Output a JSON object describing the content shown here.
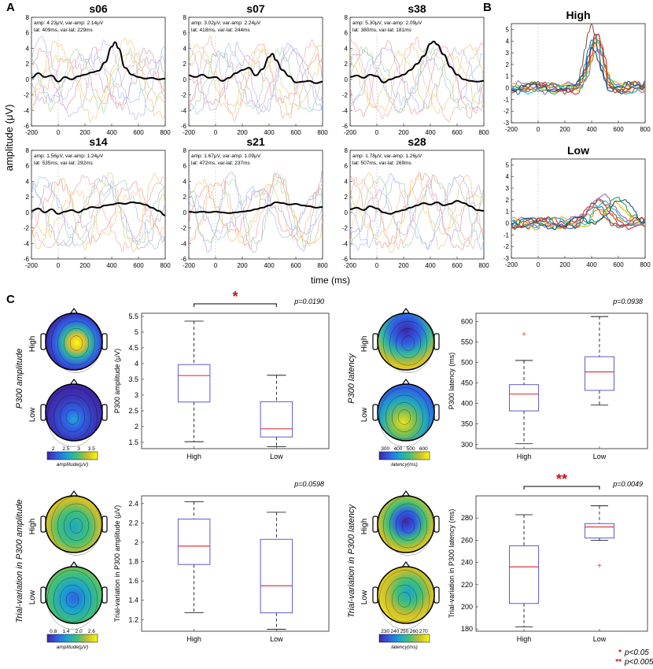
{
  "figure": {
    "panel_labels": [
      "A",
      "B",
      "C"
    ],
    "y_label": "amplitude (μV)",
    "x_label": "time (ms)"
  },
  "chart_data": [
    {
      "type": "line",
      "id": "s06",
      "title": "s06",
      "x_ticks": [
        -200,
        0,
        200,
        400,
        600,
        800
      ],
      "y_ticks": [
        -6,
        -4,
        -2,
        0,
        2,
        4,
        6,
        8
      ],
      "xlim": [
        -200,
        800
      ],
      "ylim": [
        -6,
        8
      ],
      "info": [
        "amp: 4.23μV, var-amp: 2.14μV",
        "lat: 409ms, var-lat: 229ms"
      ],
      "mean_series": {
        "x": [
          -200,
          -150,
          -100,
          -50,
          0,
          50,
          100,
          150,
          200,
          250,
          300,
          350,
          400,
          425,
          450,
          500,
          550,
          600,
          650,
          700,
          750,
          800
        ],
        "y": [
          0.2,
          0.8,
          0.3,
          0.5,
          -0.3,
          0.3,
          0.0,
          0.4,
          0.6,
          0.9,
          1.1,
          2.2,
          4.2,
          4.8,
          4.0,
          1.5,
          0.6,
          0.3,
          0.1,
          0.2,
          0.0,
          0.1
        ]
      }
    },
    {
      "type": "line",
      "id": "s07",
      "title": "s07",
      "x_ticks": [
        -200,
        0,
        200,
        400,
        600,
        800
      ],
      "y_ticks": [
        -6,
        -4,
        -2,
        0,
        2,
        4,
        6,
        8
      ],
      "xlim": [
        -200,
        800
      ],
      "ylim": [
        -6,
        8
      ],
      "info": [
        "amp: 3.02μV, var-amp: 2.24μV",
        "lat: 418ms, var-lat: 244ms"
      ],
      "mean_series": {
        "x": [
          -200,
          -150,
          -100,
          -50,
          0,
          50,
          100,
          150,
          200,
          250,
          300,
          350,
          400,
          425,
          450,
          500,
          550,
          600,
          650,
          700,
          750,
          800
        ],
        "y": [
          0.5,
          0.3,
          0.6,
          0.2,
          0.3,
          -0.2,
          0.2,
          0.8,
          1.2,
          1.5,
          0.5,
          1.3,
          2.9,
          3.3,
          2.5,
          1.2,
          0.4,
          -0.4,
          -0.3,
          -0.2,
          -0.5,
          -0.3
        ]
      }
    },
    {
      "type": "line",
      "id": "s38",
      "title": "s38",
      "x_ticks": [
        -200,
        0,
        200,
        400,
        600,
        800
      ],
      "y_ticks": [
        -6,
        -4,
        -2,
        0,
        2,
        4,
        6,
        8
      ],
      "xlim": [
        -200,
        800
      ],
      "ylim": [
        -6,
        8
      ],
      "info": [
        "amp: 5.30μV, var-amp: 2.09μV",
        "lat: 380ms, var-lat: 181ms"
      ],
      "mean_series": {
        "x": [
          -200,
          -150,
          -100,
          -50,
          0,
          50,
          100,
          150,
          200,
          250,
          300,
          350,
          400,
          425,
          450,
          500,
          550,
          600,
          650,
          700,
          750,
          800
        ],
        "y": [
          0.3,
          0.5,
          0.2,
          0.6,
          0.4,
          -0.4,
          0.0,
          0.3,
          0.6,
          1.2,
          2.0,
          3.0,
          4.6,
          4.9,
          4.5,
          3.2,
          1.6,
          0.6,
          0.0,
          -0.2,
          -0.3,
          -0.2
        ]
      }
    },
    {
      "type": "line",
      "id": "s14",
      "title": "s14",
      "x_ticks": [
        -200,
        0,
        200,
        400,
        600,
        800
      ],
      "y_ticks": [
        -6,
        -4,
        -2,
        0,
        2,
        4,
        6,
        8
      ],
      "xlim": [
        -200,
        800
      ],
      "ylim": [
        -6,
        8
      ],
      "info": [
        "amp: 1.56μV, var-amp: 1.24μV",
        "lat: 535ms, var-lat: 292ms"
      ],
      "mean_series": {
        "x": [
          -200,
          -150,
          -100,
          -50,
          0,
          50,
          100,
          150,
          200,
          250,
          300,
          350,
          400,
          450,
          500,
          550,
          600,
          650,
          700,
          750,
          800
        ],
        "y": [
          0.2,
          0.5,
          0.0,
          0.4,
          -0.2,
          0.1,
          0.3,
          0.0,
          0.4,
          0.7,
          0.6,
          0.9,
          1.0,
          1.2,
          1.1,
          1.3,
          1.2,
          1.0,
          0.6,
          0.2,
          -0.4
        ]
      }
    },
    {
      "type": "line",
      "id": "s21",
      "title": "s21",
      "x_ticks": [
        -200,
        0,
        200,
        400,
        600,
        800
      ],
      "y_ticks": [
        -6,
        -4,
        -2,
        0,
        2,
        4,
        6,
        8
      ],
      "xlim": [
        -200,
        800
      ],
      "ylim": [
        -6,
        8
      ],
      "info": [
        "amp: 1.67μV, var-amp: 1.09μV",
        "lat: 472ms, var-lat: 237ms"
      ],
      "mean_series": {
        "x": [
          -200,
          -150,
          -100,
          -50,
          0,
          50,
          100,
          150,
          200,
          250,
          300,
          350,
          400,
          450,
          500,
          550,
          600,
          650,
          700,
          750,
          800
        ],
        "y": [
          0.1,
          0.0,
          0.1,
          0.0,
          0.1,
          0.0,
          -0.1,
          0.0,
          0.1,
          0.2,
          0.4,
          0.6,
          0.9,
          1.3,
          1.2,
          1.0,
          1.1,
          0.9,
          0.8,
          0.6,
          0.7
        ]
      }
    },
    {
      "type": "line",
      "id": "s28",
      "title": "s28",
      "x_ticks": [
        -200,
        0,
        200,
        400,
        600,
        800
      ],
      "y_ticks": [
        -6,
        -4,
        -2,
        0,
        2,
        4,
        6,
        8
      ],
      "xlim": [
        -200,
        800
      ],
      "ylim": [
        -6,
        8
      ],
      "info": [
        "amp: 1.78μV, var-amp: 1.26μV",
        "lat: 507ms, var-lat: 269ms"
      ],
      "mean_series": {
        "x": [
          -200,
          -150,
          -100,
          -50,
          0,
          50,
          100,
          150,
          200,
          250,
          300,
          350,
          400,
          450,
          500,
          550,
          600,
          650,
          700,
          750,
          800
        ],
        "y": [
          0.4,
          0.6,
          0.3,
          0.8,
          0.5,
          0.0,
          -0.2,
          0.1,
          0.3,
          0.6,
          0.9,
          1.2,
          1.0,
          1.3,
          0.9,
          1.1,
          1.5,
          1.2,
          0.8,
          0.3,
          0.2
        ]
      }
    },
    {
      "type": "line",
      "id": "high",
      "title": "High",
      "x_ticks": [
        -200,
        0,
        200,
        400,
        600,
        800
      ],
      "y_ticks": [
        -3,
        -2,
        -1,
        0,
        1,
        2,
        3,
        4,
        5
      ],
      "xlim": [
        -200,
        800
      ],
      "ylim": [
        -3,
        5.5
      ]
    },
    {
      "type": "line",
      "id": "low",
      "title": "Low",
      "x_ticks": [
        -200,
        0,
        200,
        400,
        600,
        800
      ],
      "y_ticks": [
        -3,
        -2,
        -1,
        0,
        1,
        2,
        3,
        4,
        5
      ],
      "xlim": [
        -200,
        800
      ],
      "ylim": [
        -3,
        5.5
      ]
    },
    {
      "type": "box",
      "id": "amp",
      "ylabel": "P300 amplitude (μV)",
      "categories": [
        "High",
        "Low"
      ],
      "ylim": [
        1.3,
        5.6
      ],
      "y_ticks": [
        1.5,
        2,
        2.5,
        3,
        3.5,
        4,
        4.5,
        5,
        5.5
      ],
      "boxes": [
        {
          "whisker_low": 1.52,
          "q1": 2.78,
          "median": 3.62,
          "q3": 3.97,
          "whisker_high": 5.35,
          "outliers": []
        },
        {
          "whisker_low": 1.36,
          "q1": 1.67,
          "median": 1.93,
          "q3": 2.79,
          "whisker_high": 3.63,
          "outliers": []
        }
      ],
      "p_value": "p=0.0190",
      "significance": "*"
    },
    {
      "type": "box",
      "id": "lat",
      "ylabel": "P300 latency (ms)",
      "categories": [
        "High",
        "Low"
      ],
      "ylim": [
        290,
        620
      ],
      "y_ticks": [
        300,
        350,
        400,
        450,
        500,
        550,
        600
      ],
      "boxes": [
        {
          "whisker_low": 302,
          "q1": 382,
          "median": 423,
          "q3": 446,
          "whisker_high": 505,
          "outliers": [
            568
          ]
        },
        {
          "whisker_low": 396,
          "q1": 432,
          "median": 477,
          "q3": 514,
          "whisker_high": 612,
          "outliers": []
        }
      ],
      "p_value": "p=0.0938",
      "significance": ""
    },
    {
      "type": "box",
      "id": "vamp",
      "ylabel": "Trial-variation in P300 amplitude (μV)",
      "categories": [
        "High",
        "Low"
      ],
      "ylim": [
        1.08,
        2.48
      ],
      "y_ticks": [
        1.2,
        1.4,
        1.6,
        1.8,
        2,
        2.2,
        2.4
      ],
      "boxes": [
        {
          "whisker_low": 1.27,
          "q1": 1.77,
          "median": 1.96,
          "q3": 2.24,
          "whisker_high": 2.42,
          "outliers": []
        },
        {
          "whisker_low": 1.1,
          "q1": 1.27,
          "median": 1.55,
          "q3": 2.03,
          "whisker_high": 2.31,
          "outliers": []
        }
      ],
      "p_value": "p=0.0598",
      "significance": ""
    },
    {
      "type": "box",
      "id": "vlat",
      "ylabel": "Trial-variation in P300 latency (ms)",
      "categories": [
        "High",
        "Low"
      ],
      "ylim": [
        178,
        300
      ],
      "y_ticks": [
        180,
        200,
        220,
        240,
        260,
        280
      ],
      "boxes": [
        {
          "whisker_low": 182,
          "q1": 203,
          "median": 236,
          "q3": 255,
          "whisker_high": 283,
          "outliers": []
        },
        {
          "whisker_low": 260,
          "q1": 262,
          "median": 272,
          "q3": 275,
          "whisker_high": 291,
          "outliers": [
            237
          ]
        }
      ],
      "p_value": "p=0.0049",
      "significance": "**"
    }
  ],
  "topomaps": [
    {
      "id": "amp",
      "side_title": "P300 amplitude",
      "rows": [
        "High",
        "Low"
      ],
      "colorbar_ticks": [
        "2",
        "2.5",
        "3",
        "3.5"
      ],
      "colorbar_label": "amplitude(μV)"
    },
    {
      "id": "lat",
      "side_title": "P300 latency",
      "rows": [
        "High",
        "Low"
      ],
      "colorbar_ticks": [
        "300",
        "400",
        "500",
        "600"
      ],
      "colorbar_label": "latency(ms)"
    },
    {
      "id": "vamp",
      "side_title": "Trial-variation in P300 amplitude",
      "rows": [
        "High",
        "Low"
      ],
      "colorbar_ticks": [
        "0.8",
        "1.4",
        "2.0",
        "2.6"
      ],
      "colorbar_label": "amplitude(μV)"
    },
    {
      "id": "vlat",
      "side_title": "Trial-variation in P300 latency",
      "rows": [
        "High",
        "Low"
      ],
      "colorbar_ticks": [
        "230",
        "240",
        "250",
        "260",
        "270"
      ],
      "colorbar_label": "latency(ms)"
    }
  ],
  "significance_legend": [
    {
      "marker": "*",
      "text": "p<0.05"
    },
    {
      "marker": "**",
      "text": "p<0.005"
    }
  ],
  "colors": {
    "mean": "#000000",
    "significance": "#c0141e",
    "box": "#5b5bd6",
    "median": "#e0393e",
    "axis": "#555555",
    "trial_palette": [
      "#e6a0a0",
      "#a8c8e8",
      "#f5c98a",
      "#c8a8d8",
      "#a8d8a8",
      "#f0b0b0",
      "#b8b8e8",
      "#e8d080"
    ],
    "group_palette": [
      "#d62728",
      "#1f77b4",
      "#ff7f0e",
      "#2ca02c",
      "#9467bd",
      "#e6b800",
      "#17becf",
      "#8c564b",
      "#c0392b",
      "#0d4f8b"
    ]
  }
}
